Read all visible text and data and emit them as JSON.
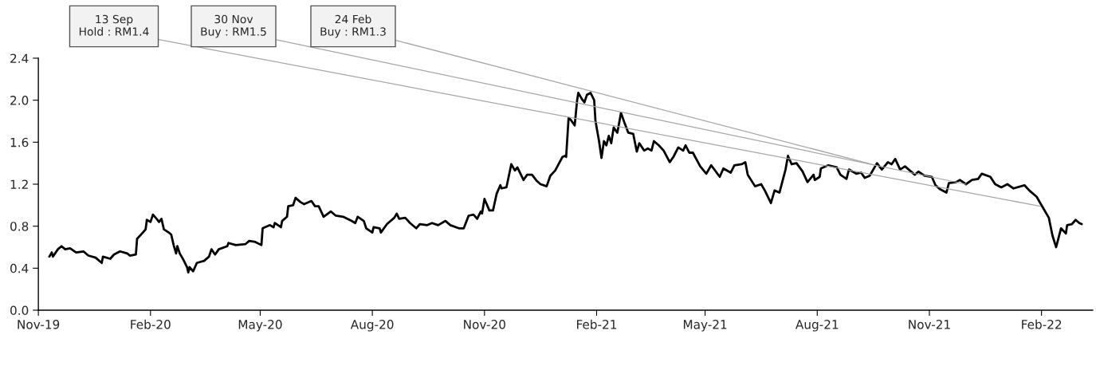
{
  "chart_data": {
    "type": "line",
    "x": [
      "2019-11-10",
      "2019-11-12",
      "2019-11-13",
      "2019-11-17",
      "2019-11-20",
      "2019-11-23",
      "2019-11-27",
      "2019-12-02",
      "2019-12-08",
      "2019-12-12",
      "2019-12-18",
      "2019-12-23",
      "2019-12-24",
      "2019-12-30",
      "2020-01-02",
      "2020-01-07",
      "2020-01-13",
      "2020-01-15",
      "2020-01-20",
      "2020-01-21",
      "2020-01-25",
      "2020-01-28",
      "2020-01-29",
      "2020-02-01",
      "2020-02-03",
      "2020-02-06",
      "2020-02-08",
      "2020-02-10",
      "2020-02-12",
      "2020-02-16",
      "2020-02-18",
      "2020-02-20",
      "2020-02-22",
      "2020-02-23",
      "2020-02-25",
      "2020-02-28",
      "2020-03-02",
      "2020-03-03",
      "2020-03-04",
      "2020-03-07",
      "2020-03-10",
      "2020-03-16",
      "2020-03-20",
      "2020-03-22",
      "2020-03-25",
      "2020-03-28",
      "2020-04-04",
      "2020-04-05",
      "2020-04-11",
      "2020-04-19",
      "2020-04-22",
      "2020-04-27",
      "2020-05-02",
      "2020-05-03",
      "2020-05-09",
      "2020-05-12",
      "2020-05-13",
      "2020-05-18",
      "2020-05-19",
      "2020-05-23",
      "2020-05-24",
      "2020-05-28",
      "2020-05-30",
      "2020-06-03",
      "2020-06-06",
      "2020-06-12",
      "2020-06-15",
      "2020-06-18",
      "2020-06-22",
      "2020-06-28",
      "2020-07-02",
      "2020-07-08",
      "2020-07-15",
      "2020-07-18",
      "2020-07-20",
      "2020-07-25",
      "2020-07-27",
      "2020-08-01",
      "2020-08-02",
      "2020-08-07",
      "2020-08-08",
      "2020-08-13",
      "2020-08-19",
      "2020-08-21",
      "2020-08-23",
      "2020-08-28",
      "2020-09-01",
      "2020-09-06",
      "2020-09-09",
      "2020-09-15",
      "2020-09-19",
      "2020-09-24",
      "2020-09-30",
      "2020-10-04",
      "2020-10-11",
      "2020-10-15",
      "2020-10-19",
      "2020-10-23",
      "2020-10-26",
      "2020-10-29",
      "2020-10-30",
      "2020-11-01",
      "2020-11-05",
      "2020-11-08",
      "2020-11-11",
      "2020-11-14",
      "2020-11-15",
      "2020-11-19",
      "2020-11-23",
      "2020-11-26",
      "2020-11-28",
      "2020-12-03",
      "2020-12-06",
      "2020-12-10",
      "2020-12-14",
      "2020-12-17",
      "2020-12-22",
      "2020-12-25",
      "2020-12-29",
      "2021-01-04",
      "2021-01-06",
      "2021-01-07",
      "2021-01-09",
      "2021-01-11",
      "2021-01-14",
      "2021-01-16",
      "2021-01-17",
      "2021-01-20",
      "2021-01-22",
      "2021-01-24",
      "2021-01-27",
      "2021-01-30",
      "2021-01-31",
      "2021-02-01",
      "2021-02-03",
      "2021-02-05",
      "2021-02-07",
      "2021-02-09",
      "2021-02-11",
      "2021-02-13",
      "2021-02-15",
      "2021-02-18",
      "2021-02-21",
      "2021-02-24",
      "2021-02-27",
      "2021-03-03",
      "2021-03-06",
      "2021-03-08",
      "2021-03-12",
      "2021-03-15",
      "2021-03-18",
      "2021-03-20",
      "2021-03-24",
      "2021-03-28",
      "2021-04-02",
      "2021-04-05",
      "2021-04-09",
      "2021-04-13",
      "2021-04-15",
      "2021-04-18",
      "2021-04-21",
      "2021-04-27",
      "2021-05-02",
      "2021-05-06",
      "2021-05-13",
      "2021-05-16",
      "2021-05-22",
      "2021-05-25",
      "2021-05-31",
      "2021-06-03",
      "2021-06-05",
      "2021-06-11",
      "2021-06-16",
      "2021-06-19",
      "2021-06-24",
      "2021-06-27",
      "2021-07-01",
      "2021-07-06",
      "2021-07-08",
      "2021-07-11",
      "2021-07-15",
      "2021-07-20",
      "2021-07-24",
      "2021-07-29",
      "2021-07-30",
      "2021-08-03",
      "2021-08-04",
      "2021-08-10",
      "2021-08-17",
      "2021-08-20",
      "2021-08-25",
      "2021-08-27",
      "2021-09-02",
      "2021-09-06",
      "2021-09-09",
      "2021-09-13",
      "2021-09-19",
      "2021-09-23",
      "2021-09-28",
      "2021-10-01",
      "2021-10-04",
      "2021-10-08",
      "2021-10-12",
      "2021-10-20",
      "2021-10-23",
      "2021-10-28",
      "2021-11-03",
      "2021-11-06",
      "2021-11-10",
      "2021-11-15",
      "2021-11-17",
      "2021-11-23",
      "2021-11-26",
      "2021-12-01",
      "2021-12-06",
      "2021-12-11",
      "2021-12-14",
      "2021-12-21",
      "2021-12-25",
      "2021-12-30",
      "2022-01-04",
      "2022-01-09",
      "2022-01-18",
      "2022-01-22",
      "2022-01-28",
      "2022-02-02",
      "2022-02-07",
      "2022-02-10",
      "2022-02-13",
      "2022-02-17",
      "2022-02-21",
      "2022-02-22",
      "2022-02-26",
      "2022-03-01",
      "2022-03-04",
      "2022-03-06"
    ],
    "series": [
      {
        "color": "#000000",
        "values": [
          0.51,
          0.55,
          0.51,
          0.58,
          0.61,
          0.58,
          0.59,
          0.55,
          0.56,
          0.52,
          0.5,
          0.45,
          0.51,
          0.49,
          0.53,
          0.56,
          0.54,
          0.52,
          0.53,
          0.68,
          0.73,
          0.77,
          0.86,
          0.84,
          0.91,
          0.87,
          0.84,
          0.87,
          0.77,
          0.74,
          0.72,
          0.62,
          0.54,
          0.61,
          0.54,
          0.48,
          0.41,
          0.36,
          0.41,
          0.37,
          0.45,
          0.47,
          0.51,
          0.58,
          0.53,
          0.58,
          0.61,
          0.64,
          0.62,
          0.63,
          0.66,
          0.65,
          0.62,
          0.78,
          0.81,
          0.79,
          0.83,
          0.79,
          0.85,
          0.89,
          0.99,
          1.0,
          1.07,
          1.03,
          1.01,
          1.04,
          0.99,
          0.99,
          0.89,
          0.94,
          0.9,
          0.89,
          0.85,
          0.83,
          0.89,
          0.85,
          0.78,
          0.74,
          0.79,
          0.78,
          0.74,
          0.82,
          0.88,
          0.92,
          0.87,
          0.88,
          0.83,
          0.78,
          0.82,
          0.81,
          0.83,
          0.81,
          0.85,
          0.81,
          0.78,
          0.78,
          0.9,
          0.91,
          0.87,
          0.94,
          0.92,
          1.06,
          0.95,
          0.95,
          1.11,
          1.19,
          1.16,
          1.17,
          1.39,
          1.33,
          1.36,
          1.24,
          1.29,
          1.29,
          1.23,
          1.2,
          1.18,
          1.28,
          1.33,
          1.46,
          1.47,
          1.46,
          1.83,
          1.81,
          1.76,
          2.0,
          2.07,
          2.01,
          1.98,
          2.05,
          2.07,
          2.0,
          1.81,
          1.74,
          1.61,
          1.45,
          1.61,
          1.57,
          1.66,
          1.59,
          1.74,
          1.69,
          1.88,
          1.78,
          1.69,
          1.68,
          1.51,
          1.59,
          1.52,
          1.54,
          1.52,
          1.61,
          1.57,
          1.52,
          1.41,
          1.46,
          1.55,
          1.52,
          1.57,
          1.5,
          1.5,
          1.37,
          1.3,
          1.38,
          1.27,
          1.35,
          1.31,
          1.38,
          1.39,
          1.41,
          1.29,
          1.18,
          1.2,
          1.14,
          1.02,
          1.14,
          1.12,
          1.34,
          1.47,
          1.39,
          1.4,
          1.32,
          1.22,
          1.29,
          1.24,
          1.27,
          1.35,
          1.38,
          1.36,
          1.29,
          1.25,
          1.34,
          1.3,
          1.31,
          1.26,
          1.28,
          1.4,
          1.34,
          1.41,
          1.39,
          1.44,
          1.34,
          1.37,
          1.29,
          1.32,
          1.28,
          1.27,
          1.19,
          1.15,
          1.12,
          1.21,
          1.22,
          1.24,
          1.2,
          1.24,
          1.25,
          1.3,
          1.27,
          1.2,
          1.17,
          1.2,
          1.16,
          1.19,
          1.14,
          1.08,
          0.98,
          0.88,
          0.71,
          0.6,
          0.78,
          0.73,
          0.81,
          0.82,
          0.86,
          0.83,
          0.82
        ]
      }
    ],
    "xlim": [
      "2019-11-01",
      "2022-03-15"
    ],
    "xticks": [
      {
        "value": "2019-11-01",
        "label": "Nov-19"
      },
      {
        "value": "2020-02-01",
        "label": "Feb-20"
      },
      {
        "value": "2020-05-01",
        "label": "May-20"
      },
      {
        "value": "2020-08-01",
        "label": "Aug-20"
      },
      {
        "value": "2020-11-01",
        "label": "Nov-20"
      },
      {
        "value": "2021-02-01",
        "label": "Feb-21"
      },
      {
        "value": "2021-05-01",
        "label": "May-21"
      },
      {
        "value": "2021-08-01",
        "label": "Aug-21"
      },
      {
        "value": "2021-11-01",
        "label": "Nov-21"
      },
      {
        "value": "2022-02-01",
        "label": "Feb-22"
      }
    ],
    "ylim": [
      0,
      2.4
    ],
    "yticks": [
      {
        "value": 0,
        "label": "0.0"
      },
      0.4,
      0.8,
      1.2,
      1.6,
      {
        "value": 2,
        "label": "2.0"
      },
      2.4
    ],
    "annotations": [
      {
        "text": "13 Sep\nHold : RM1.4",
        "x": "2022-01-31",
        "y": 0.99
      },
      {
        "text": "30 Nov\nBuy : RM1.5",
        "x": "2021-12-01",
        "y": 1.2
      },
      {
        "text": "24 Feb\nBuy : RM1.3",
        "x": "2021-09-18",
        "y": 1.38
      }
    ],
    "grid": false,
    "marker": "none",
    "line_style": "solid"
  }
}
